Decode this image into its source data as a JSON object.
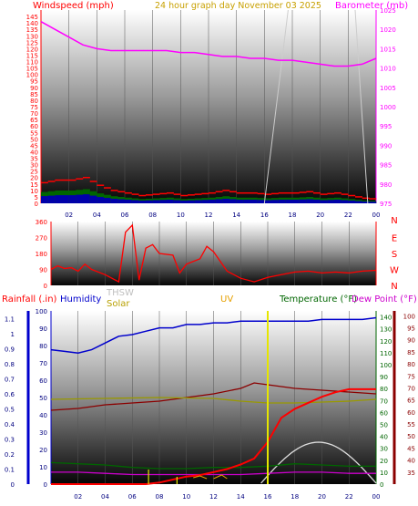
{
  "header": {
    "left": "Windspeed (mph)",
    "center": "24 hour graph day   November 03 2025",
    "right": "Barometer (mb)"
  },
  "colors": {
    "wind": "#ff0000",
    "gust": "#ff0000",
    "humidity": "#0000cc",
    "pressure": "#ff00ff",
    "direction": "#ff0000",
    "rain": "#ff0000",
    "thsw": "#c0c0c0",
    "solar": "#b8a000",
    "uv": "#e6e600",
    "temperature": "#006600",
    "dewpoint": "#cc00cc",
    "heatindex": "#8b0000"
  },
  "panel1": {
    "left_ticks": [
      "0",
      "5",
      "10",
      "15",
      "20",
      "25",
      "30",
      "35",
      "40",
      "45",
      "50",
      "55",
      "60",
      "65",
      "70",
      "75",
      "80",
      "85",
      "90",
      "95",
      "100",
      "105",
      "110",
      "115",
      "120",
      "125",
      "130",
      "135",
      "140",
      "145"
    ],
    "right_ticks": [
      "975",
      "980",
      "985",
      "990",
      "995",
      "1000",
      "1005",
      "1010",
      "1015",
      "1020",
      "1025"
    ],
    "hours": [
      "02",
      "04",
      "06",
      "08",
      "10",
      "12",
      "14",
      "16",
      "18",
      "20",
      "22",
      "00"
    ]
  },
  "panel2": {
    "deg_ticks": [
      "0",
      "90",
      "180",
      "270",
      "360"
    ],
    "compass": [
      "N",
      "W",
      "S",
      "E",
      "N"
    ],
    "hours": [
      "02",
      "04",
      "06",
      "08",
      "10",
      "12",
      "14",
      "16",
      "18",
      "20",
      "22",
      "00"
    ]
  },
  "panel3": {
    "labels": {
      "rain": "Rainfall (.in)",
      "humidity": "Humidity",
      "thsw": "THSW",
      "solar": "Solar",
      "uv": "UV",
      "temperature": "Temperature (°F)",
      "dewpoint": "Dew Point (°F)"
    },
    "rain_ticks": [
      "0",
      "0.1",
      "0.2",
      "0.3",
      "0.4",
      "0.5",
      "0.6",
      "0.7",
      "0.8",
      "0.9",
      "1",
      "1.1"
    ],
    "hum_ticks": [
      "0",
      "10",
      "20",
      "30",
      "40",
      "50",
      "60",
      "70",
      "80",
      "90",
      "100"
    ],
    "temp1_ticks": [
      "0",
      "10",
      "20",
      "30",
      "40",
      "50",
      "60",
      "70",
      "80",
      "90",
      "100",
      "110",
      "120",
      "130",
      "140"
    ],
    "temp2_ticks": [
      "35",
      "40",
      "45",
      "50",
      "55",
      "60",
      "65",
      "70",
      "75",
      "80",
      "85",
      "90",
      "95",
      "100"
    ],
    "hours": [
      "02",
      "04",
      "06",
      "08",
      "10",
      "12",
      "14",
      "16",
      "18",
      "20",
      "22",
      "00"
    ]
  },
  "chart_data": [
    {
      "type": "line",
      "title": "24 hour graph day   November 03 2025",
      "x_unit": "hour",
      "xlim": [
        0,
        24
      ],
      "ylabel": "Windspeed (mph)",
      "ylim": [
        0,
        150
      ],
      "y2label": "Barometer (mb)",
      "y2lim": [
        975,
        1025
      ],
      "series": [
        {
          "name": "Barometer (mb)",
          "axis": "right",
          "x": [
            0,
            1,
            2,
            3,
            4,
            5,
            6,
            7,
            8,
            9,
            10,
            11,
            12,
            13,
            14,
            15,
            16,
            17,
            18,
            19,
            20,
            21,
            22,
            23,
            24
          ],
          "values": [
            1022,
            1020,
            1018,
            1016,
            1015,
            1014.5,
            1014.5,
            1014.5,
            1014.5,
            1014.5,
            1014,
            1014,
            1013.5,
            1013,
            1013,
            1012.5,
            1012.5,
            1012,
            1012,
            1011.5,
            1011,
            1010.5,
            1010.5,
            1011,
            1012.5
          ]
        },
        {
          "name": "Windspeed (mph)",
          "axis": "left",
          "x": [
            0,
            1,
            2,
            3,
            4,
            5,
            6,
            7,
            8,
            9,
            10,
            11,
            12,
            13,
            14,
            15,
            16,
            17,
            18,
            19,
            20,
            21,
            22,
            23,
            24
          ],
          "values": [
            16,
            18,
            18,
            20,
            14,
            10,
            8,
            6,
            7,
            8,
            6,
            7,
            8,
            10,
            8,
            8,
            7,
            8,
            8,
            9,
            7,
            8,
            6,
            4,
            3
          ]
        }
      ]
    },
    {
      "type": "line",
      "x_unit": "hour",
      "xlim": [
        0,
        24
      ],
      "ylim": [
        0,
        360
      ],
      "series": [
        {
          "name": "Wind Direction",
          "x": [
            0,
            0.5,
            1,
            1.5,
            2,
            2.5,
            3,
            4,
            5,
            5.5,
            6,
            6.5,
            7,
            7.5,
            8,
            9,
            9.5,
            10,
            11,
            11.5,
            12,
            13,
            14,
            15,
            16,
            17,
            18,
            19,
            20,
            21,
            22,
            23,
            24
          ],
          "values": [
            90,
            110,
            95,
            100,
            80,
            120,
            90,
            60,
            20,
            300,
            340,
            30,
            210,
            230,
            180,
            170,
            70,
            120,
            150,
            220,
            190,
            80,
            40,
            20,
            45,
            60,
            75,
            80,
            70,
            75,
            70,
            80,
            85
          ]
        }
      ]
    },
    {
      "type": "line",
      "x_unit": "hour",
      "xlim": [
        0,
        24
      ],
      "ylabel": "Rainfall (.in)",
      "ylim": [
        0,
        1.15
      ],
      "y2label": "Temperature (°F)",
      "y2lim": [
        0,
        145
      ],
      "series": [
        {
          "name": "Humidity",
          "axis": "humidity",
          "ylim": [
            0,
            100
          ],
          "x": [
            0,
            1,
            2,
            3,
            4,
            5,
            6,
            7,
            8,
            9,
            10,
            11,
            12,
            13,
            14,
            15,
            16,
            17,
            18,
            19,
            20,
            21,
            22,
            23,
            24
          ],
          "values": [
            80,
            79,
            78,
            80,
            84,
            88,
            89,
            91,
            93,
            93,
            95,
            95,
            96,
            96,
            97,
            97,
            97,
            97,
            97,
            97,
            98,
            98,
            98,
            98,
            99
          ]
        },
        {
          "name": "Rainfall (.in)",
          "axis": "rain",
          "ylim": [
            0,
            1.15
          ],
          "x": [
            0,
            6,
            7,
            8,
            9,
            10,
            11,
            12,
            13,
            14,
            15,
            16,
            17,
            18,
            19,
            20,
            21,
            22,
            23,
            24
          ],
          "values": [
            0,
            0,
            0,
            0.01,
            0.03,
            0.05,
            0.06,
            0.08,
            0.1,
            0.13,
            0.17,
            0.28,
            0.44,
            0.5,
            0.54,
            0.58,
            0.61,
            0.63,
            0.63,
            0.63
          ]
        },
        {
          "name": "Temperature (°F)",
          "axis": "temp",
          "ylim": [
            0,
            145
          ],
          "x": [
            0,
            2,
            4,
            6,
            8,
            10,
            12,
            14,
            16,
            18,
            20,
            22,
            24
          ],
          "values": [
            18,
            17,
            16,
            14,
            13,
            13,
            14,
            14,
            15,
            17,
            16,
            15,
            15
          ]
        },
        {
          "name": "Dew Point (°F)",
          "axis": "temp",
          "ylim": [
            0,
            145
          ],
          "x": [
            0,
            2,
            4,
            6,
            8,
            10,
            12,
            14,
            16,
            18,
            20,
            22,
            24
          ],
          "values": [
            10,
            10,
            9,
            8,
            8,
            8,
            8,
            8,
            9,
            10,
            10,
            9,
            9
          ]
        }
      ]
    }
  ]
}
